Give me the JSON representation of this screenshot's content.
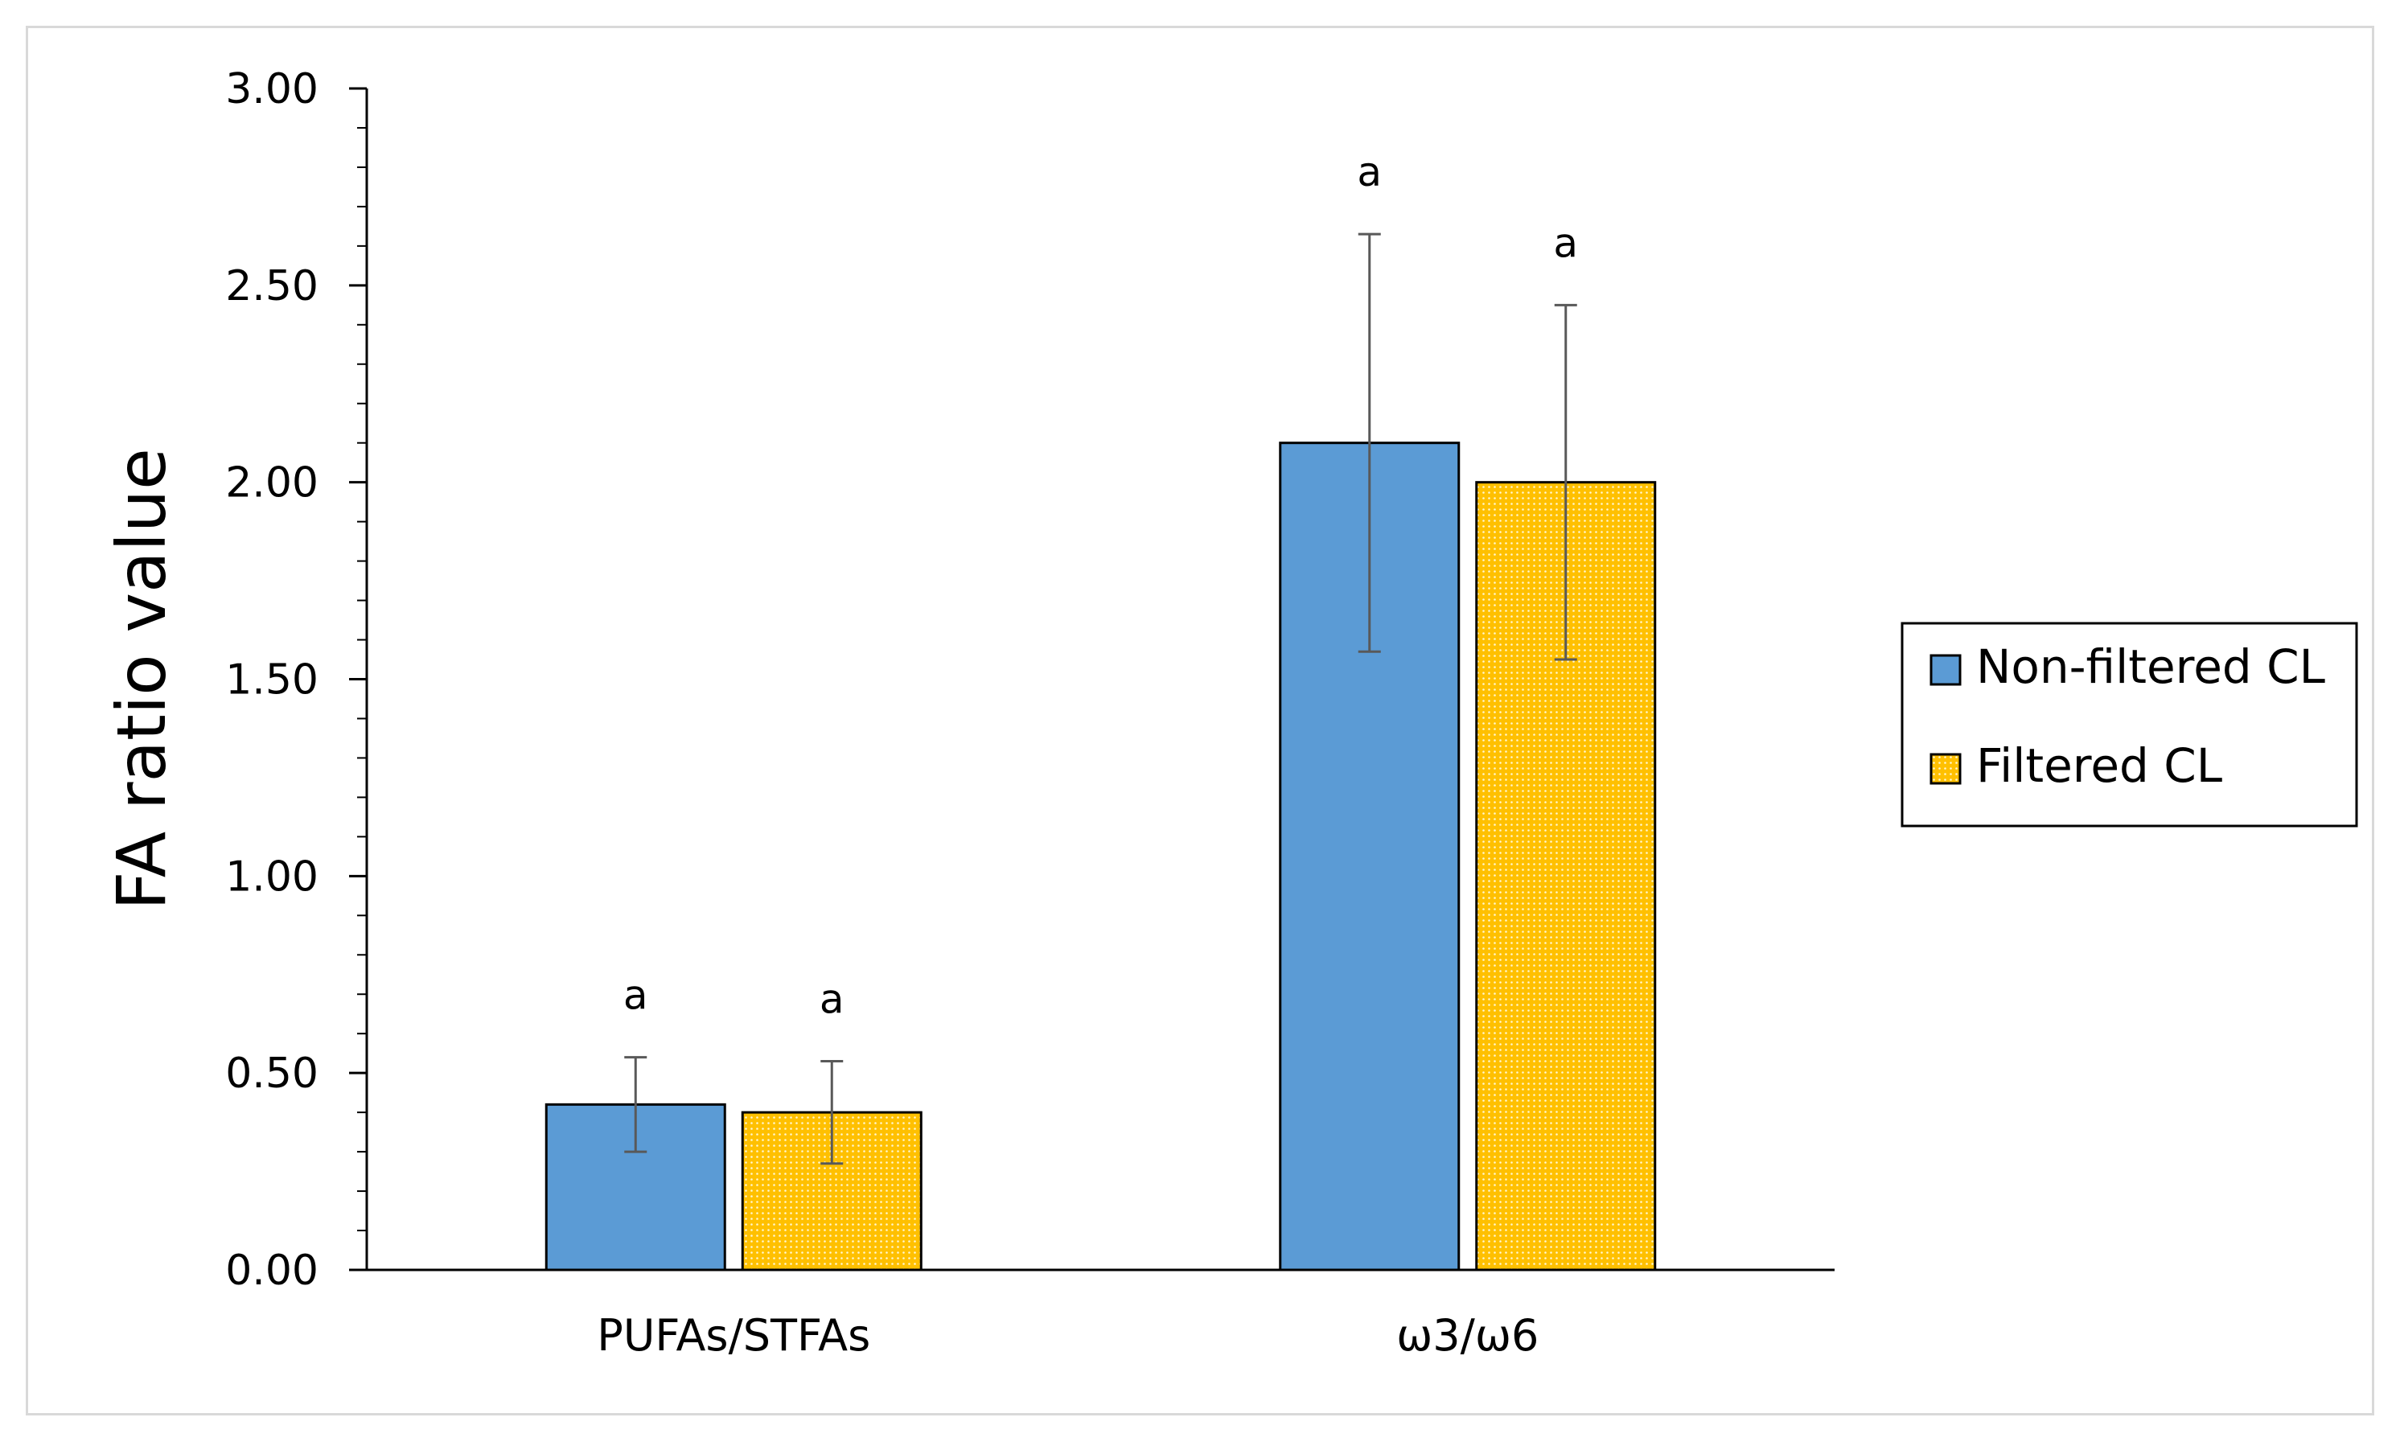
{
  "chart_data": {
    "type": "bar",
    "categories": [
      "PUFAs/STFAs",
      "ω3/ω6"
    ],
    "series": [
      {
        "name": "Non-filtered CL",
        "values": [
          0.42,
          2.1
        ],
        "errors": [
          0.12,
          0.53
        ],
        "significance": [
          "a",
          "a"
        ],
        "color": "#5b9bd5",
        "pattern": "solid"
      },
      {
        "name": "Filtered CL",
        "values": [
          0.4,
          2.0
        ],
        "errors": [
          0.13,
          0.45
        ],
        "significance": [
          "a",
          "a"
        ],
        "color": "#ffc000",
        "pattern": "dotted"
      }
    ],
    "ylabel": "FA ratio value",
    "xlabel": "",
    "ylim": [
      0,
      3.0
    ],
    "yticks": [
      "0.00",
      "0.50",
      "1.00",
      "1.50",
      "2.00",
      "2.50",
      "3.00"
    ],
    "legend": "right",
    "grid": false
  }
}
